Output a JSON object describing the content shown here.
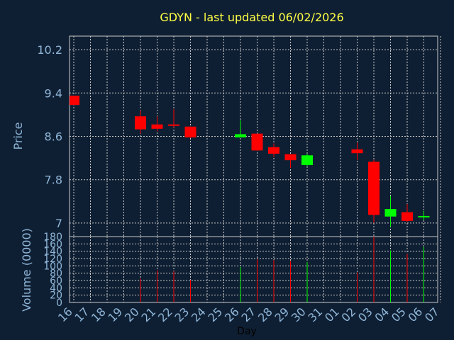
{
  "chart_data": {
    "type": "candlestick",
    "title": "GDYN - last updated 06/02/2026",
    "xlabel": "Day",
    "ylabel": "Price",
    "volume_ylabel": "Volume (0000)",
    "x_ticks": [
      "16",
      "17",
      "18",
      "19",
      "20",
      "21",
      "22",
      "23",
      "24",
      "25",
      "26",
      "27",
      "28",
      "29",
      "30",
      "31",
      "01",
      "02",
      "03",
      "04",
      "05",
      "06",
      "07"
    ],
    "y_ticks": [
      "7",
      "7.8",
      "8.6",
      "9.4",
      "10.2"
    ],
    "ylim": [
      6.75,
      10.45
    ],
    "volume_ticks": [
      "0",
      "20",
      "40",
      "60",
      "80",
      "100",
      "120",
      "140",
      "160",
      "180"
    ],
    "volume_ylim": [
      0,
      180
    ],
    "grid": true,
    "colors": {
      "up": "#00ff00",
      "down": "#ff0000",
      "grid": "#c8c8c8",
      "frame": "#c8c8c8"
    },
    "candles": [
      {
        "day": "16",
        "open": 9.35,
        "high": 9.35,
        "low": 9.18,
        "close": 9.18,
        "volume": 0
      },
      {
        "day": "20",
        "open": 8.97,
        "high": 9.08,
        "low": 8.65,
        "close": 8.73,
        "volume": 65
      },
      {
        "day": "21",
        "open": 8.82,
        "high": 8.97,
        "low": 8.69,
        "close": 8.74,
        "volume": 88
      },
      {
        "day": "22",
        "open": 8.82,
        "high": 9.1,
        "low": 8.76,
        "close": 8.8,
        "volume": 85
      },
      {
        "day": "23",
        "open": 8.78,
        "high": 8.78,
        "low": 8.57,
        "close": 8.58,
        "volume": 62
      },
      {
        "day": "26",
        "open": 8.58,
        "high": 8.9,
        "low": 8.58,
        "close": 8.64,
        "volume": 97
      },
      {
        "day": "27",
        "open": 8.65,
        "high": 8.65,
        "low": 8.33,
        "close": 8.34,
        "volume": 118
      },
      {
        "day": "28",
        "open": 8.4,
        "high": 8.47,
        "low": 8.22,
        "close": 8.28,
        "volume": 116
      },
      {
        "day": "29",
        "open": 8.27,
        "high": 8.27,
        "low": 8.02,
        "close": 8.16,
        "volume": 113
      },
      {
        "day": "30",
        "open": 8.07,
        "high": 8.28,
        "low": 8.05,
        "close": 8.25,
        "volume": 110
      },
      {
        "day": "02",
        "open": 8.36,
        "high": 8.48,
        "low": 8.16,
        "close": 8.29,
        "volume": 82
      },
      {
        "day": "03",
        "open": 8.13,
        "high": 8.17,
        "low": 7.0,
        "close": 7.15,
        "volume": 180
      },
      {
        "day": "04",
        "open": 7.12,
        "high": 7.5,
        "low": 6.93,
        "close": 7.26,
        "volume": 142
      },
      {
        "day": "05",
        "open": 7.2,
        "high": 7.35,
        "low": 7.02,
        "close": 7.04,
        "volume": 133
      },
      {
        "day": "06",
        "open": 7.12,
        "high": 7.22,
        "low": 7.05,
        "close": 7.13,
        "volume": 152
      }
    ]
  }
}
